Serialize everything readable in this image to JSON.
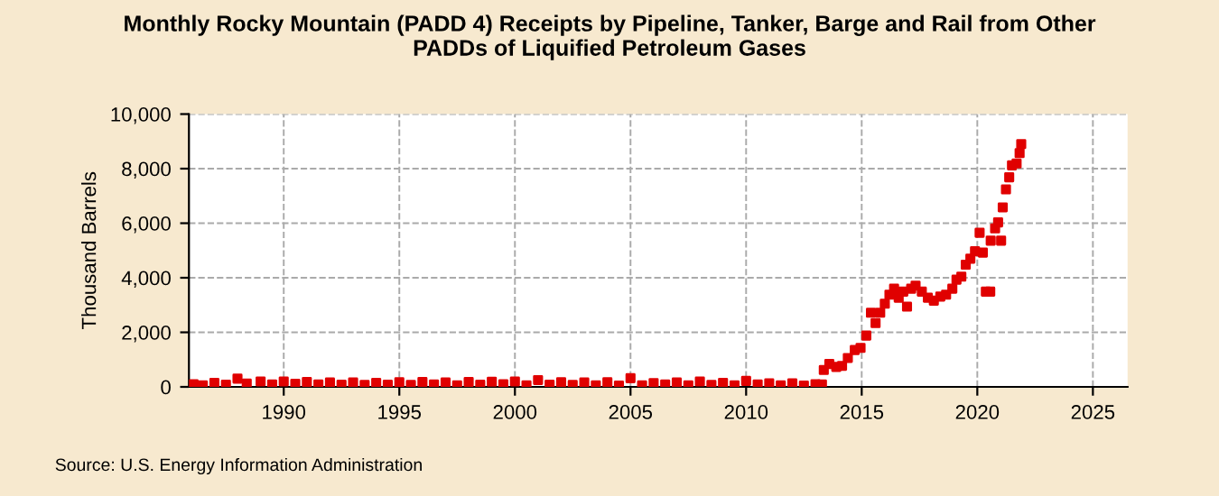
{
  "chart_data": {
    "type": "scatter",
    "title": "Monthly Rocky Mountain (PADD 4) Receipts by Pipeline, Tanker, Barge and Rail from Other\nPADDs of Liquified Petroleum Gases",
    "ylabel": "Thousand Barrels",
    "annotations": [
      "Source: U.S. Energy Information Administration"
    ],
    "series": [
      {
        "color": "#e00000",
        "x": [
          1986.1,
          1986.5,
          1987.0,
          1987.5,
          1988.0,
          1988.4,
          1989.0,
          1989.5,
          1990.0,
          1990.5,
          1991.0,
          1991.5,
          1992.0,
          1992.5,
          1993.0,
          1993.5,
          1994.0,
          1994.5,
          1995.0,
          1995.5,
          1996.0,
          1996.5,
          1997.0,
          1997.5,
          1998.0,
          1998.5,
          1999.0,
          1999.5,
          2000.0,
          2000.5,
          2001.0,
          2001.5,
          2002.0,
          2002.5,
          2003.0,
          2003.5,
          2004.0,
          2004.5,
          2005.0,
          2005.5,
          2006.0,
          2006.5,
          2007.0,
          2007.5,
          2008.0,
          2008.5,
          2009.0,
          2009.5,
          2010.0,
          2010.5,
          2011.0,
          2011.5,
          2012.0,
          2012.5,
          2013.0,
          2013.28,
          2013.36,
          2013.6,
          2013.9,
          2014.15,
          2014.4,
          2014.7,
          2014.95,
          2015.2,
          2015.4,
          2015.6,
          2015.8,
          2016.0,
          2016.2,
          2016.4,
          2016.6,
          2016.8,
          2016.96,
          2017.14,
          2017.33,
          2017.6,
          2017.86,
          2018.12,
          2018.4,
          2018.65,
          2018.92,
          2019.1,
          2019.31,
          2019.5,
          2019.7,
          2019.9,
          2020.1,
          2020.24,
          2020.37,
          2020.56,
          2020.58,
          2020.77,
          2020.9,
          2021.03,
          2021.1,
          2021.24,
          2021.38,
          2021.5,
          2021.7,
          2021.83,
          2021.9
        ],
        "values": [
          100,
          60,
          150,
          80,
          300,
          120,
          200,
          90,
          200,
          110,
          180,
          90,
          160,
          80,
          160,
          70,
          150,
          80,
          170,
          70,
          180,
          90,
          160,
          60,
          180,
          80,
          190,
          100,
          200,
          60,
          250,
          80,
          170,
          70,
          160,
          60,
          170,
          50,
          320,
          60,
          140,
          90,
          160,
          60,
          200,
          70,
          150,
          60,
          220,
          90,
          130,
          60,
          130,
          50,
          100,
          90,
          620,
          840,
          730,
          770,
          1060,
          1350,
          1430,
          1880,
          2720,
          2340,
          2720,
          3050,
          3380,
          3600,
          3270,
          3490,
          2940,
          3600,
          3710,
          3490,
          3270,
          3160,
          3310,
          3380,
          3600,
          3930,
          4040,
          4480,
          4700,
          4970,
          5650,
          4920,
          3490,
          3490,
          5360,
          5810,
          6030,
          5360,
          6580,
          7240,
          7680,
          8120,
          8190,
          8570,
          8900
        ]
      }
    ],
    "marker": "square",
    "xlim": [
      1985.9,
      2026.5
    ],
    "xticks": [
      1990,
      1995,
      2000,
      2005,
      2010,
      2015,
      2020,
      2025
    ],
    "ylim": [
      0,
      10000
    ],
    "yticks": [
      {
        "value": 0,
        "label": "0"
      },
      {
        "value": 2000,
        "label": "2,000"
      },
      {
        "value": 4000,
        "label": "4,000"
      },
      {
        "value": 6000,
        "label": "6,000"
      },
      {
        "value": 8000,
        "label": "8,000"
      },
      {
        "value": 10000,
        "label": "10,000"
      }
    ],
    "grid": true
  }
}
